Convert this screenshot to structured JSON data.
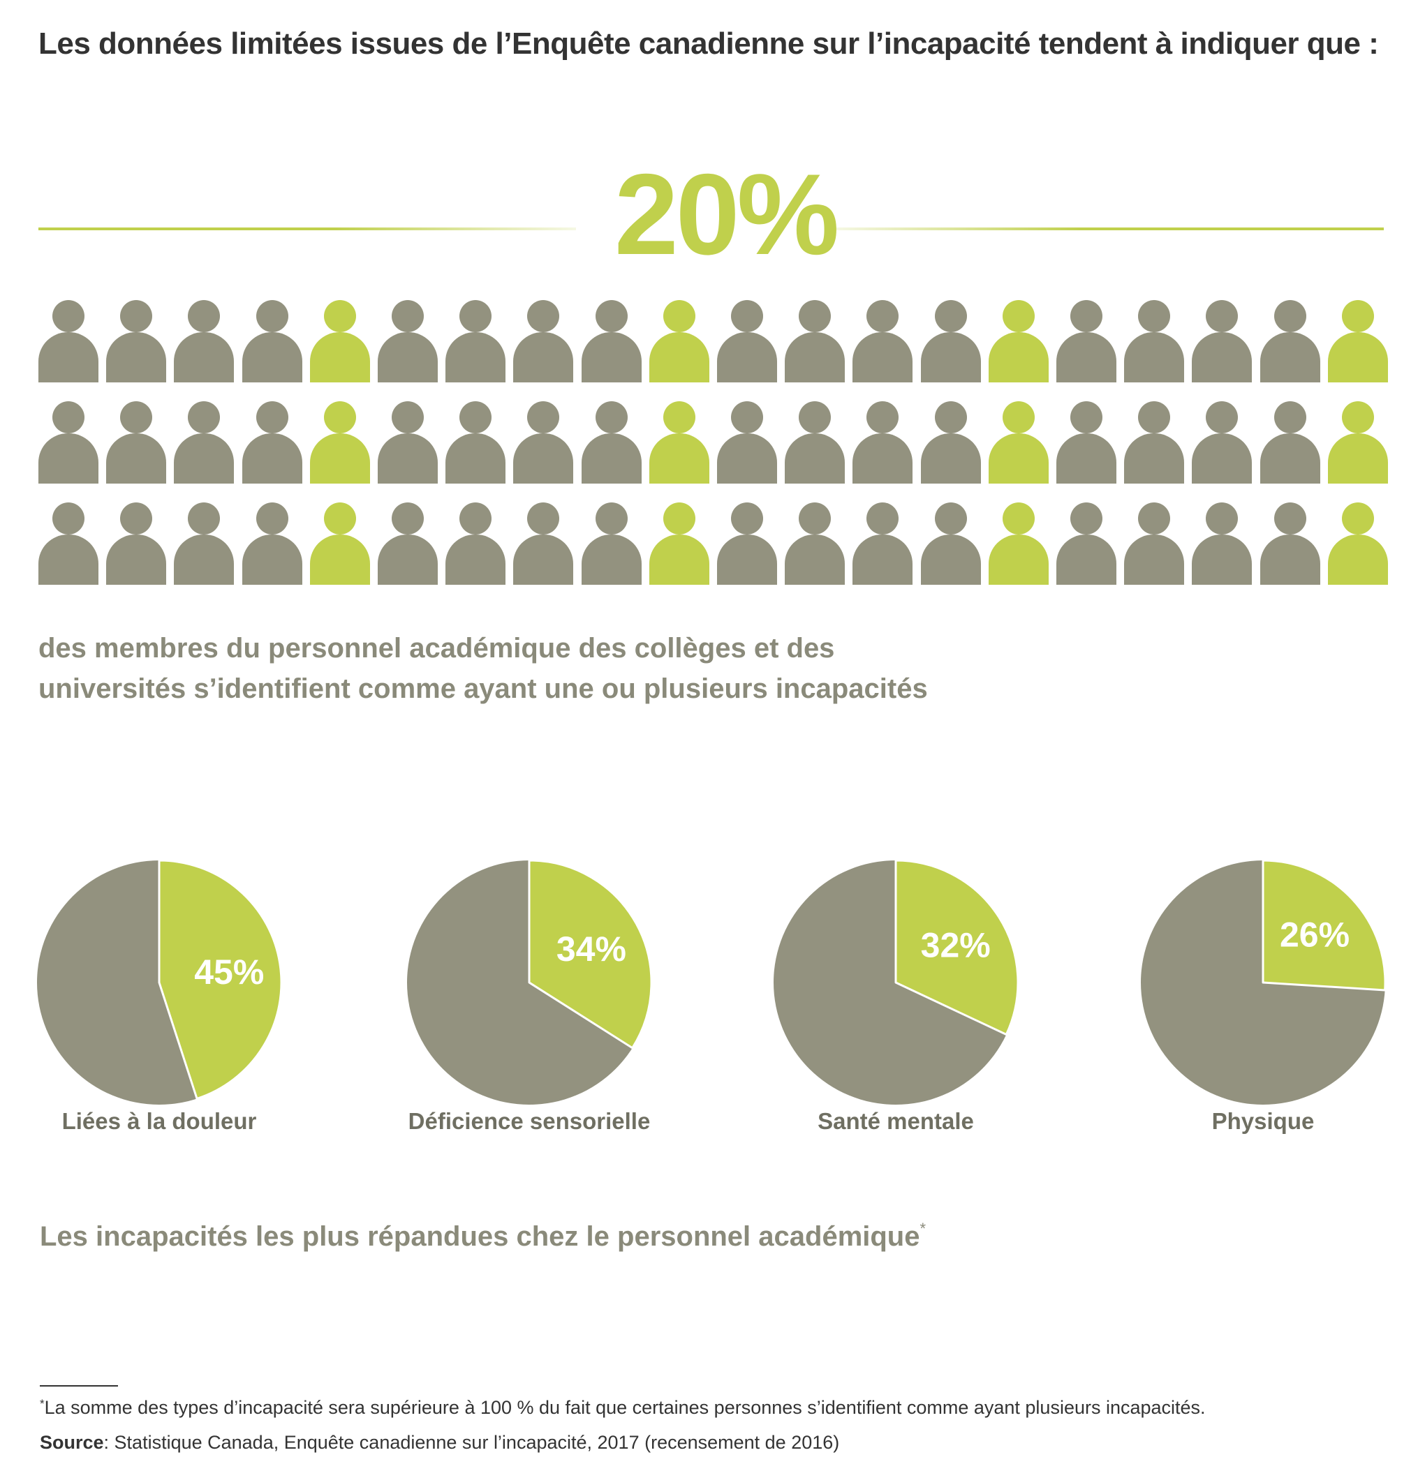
{
  "headline": "Les données limitées issues de l’Enquête canadienne sur l’incapacité tendent à indiquer que :",
  "big_percent": "20%",
  "caption_line1": "des membres du personnel académique des collèges et des",
  "caption_line2": "universités s’identifient comme ayant une ou plusieurs incapacités",
  "section_title": "Les incapacités les plus répandues chez le personnel académique",
  "section_title_marker": "*",
  "footnote_marker": "*",
  "footnote": "La somme des types d’incapacité sera supérieure à 100 % du fait que certaines personnes s’identifient comme ayant plusieurs incapacités.",
  "source_label": "Source",
  "source_text": ": Statistique Canada, Enquête canadienne sur l’incapacité, 2017 (recensement de 2016)",
  "colors": {
    "highlight": "#c0d04c",
    "base": "#93927f",
    "text_dark": "#333333",
    "text_muted": "#8a8a7a"
  },
  "icon_names": [
    "person-icon"
  ],
  "chart_data": [
    {
      "type": "pictogram",
      "rows": 3,
      "columns": 20,
      "total_icons": 60,
      "highlighted_icons": 12,
      "highlighted_columns": [
        5,
        10,
        15,
        20
      ],
      "highlight_share_percent": 20,
      "label": "20%"
    },
    {
      "type": "pie",
      "slices": [
        {
          "name": "Liées à la douleur",
          "value": 45,
          "label": "45%"
        },
        {
          "name": "Déficience sensorielle",
          "value": 34,
          "label": "34%"
        },
        {
          "name": "Santé mentale",
          "value": 32,
          "label": "32%"
        },
        {
          "name": "Physique",
          "value": 26,
          "label": "26%"
        }
      ]
    }
  ]
}
